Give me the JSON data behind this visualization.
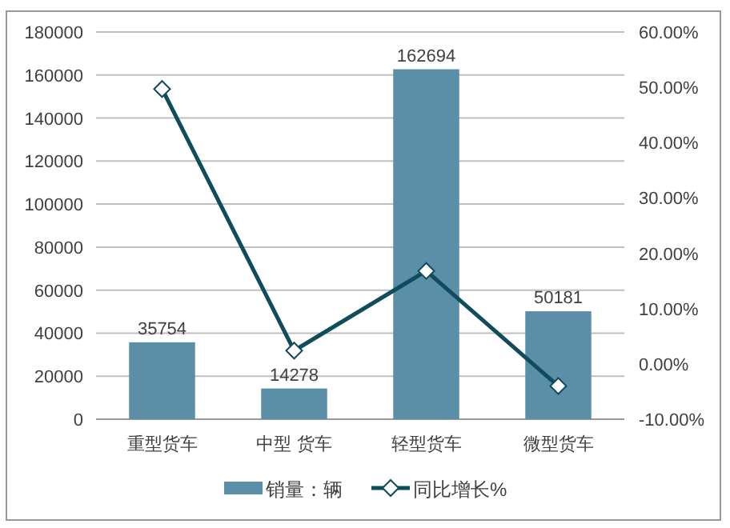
{
  "chart_data": {
    "type": "bar",
    "categories": [
      "重型货车",
      "中型 货车",
      "轻型货车",
      "微型货车"
    ],
    "series": [
      {
        "name": "销量：辆",
        "color": "#5b8fa8",
        "values": [
          35754,
          14278,
          162694,
          50181
        ],
        "value_labels": [
          "35754",
          "14278",
          "162694",
          "50181"
        ]
      },
      {
        "name": "同比增长%",
        "type": "line",
        "axis": "y2",
        "color": "#0f4c5c",
        "marker": "diamond",
        "values": [
          49.7,
          2.4,
          16.8,
          -4.0
        ]
      }
    ],
    "ylim": [
      0,
      180000
    ],
    "yticks": [
      0,
      20000,
      40000,
      60000,
      80000,
      100000,
      120000,
      140000,
      160000,
      180000
    ],
    "y2lim": [
      -10,
      60
    ],
    "y2ticks": [
      {
        "value": -10,
        "label": "-10.00%"
      },
      {
        "value": 0,
        "label": "0.00%"
      },
      {
        "value": 10,
        "label": "10.00%"
      },
      {
        "value": 20,
        "label": "20.00%"
      },
      {
        "value": 30,
        "label": "30.00%"
      },
      {
        "value": 40,
        "label": "40.00%"
      },
      {
        "value": 50,
        "label": "50.00%"
      },
      {
        "value": 60,
        "label": "60.00%"
      }
    ],
    "grid": "y",
    "legend": "bottom"
  }
}
